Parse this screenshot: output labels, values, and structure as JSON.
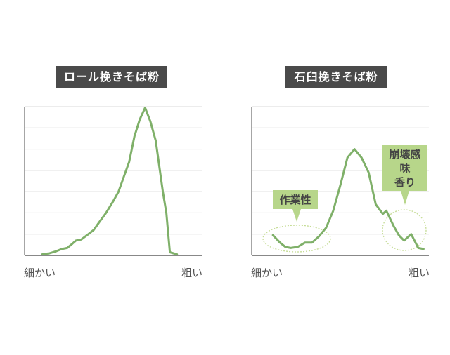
{
  "colors": {
    "line": "#7fb069",
    "grid": "#d8d8d8",
    "axis": "#888888",
    "callout_bg": "#b7d68a",
    "title_bg": "#4a4a4a"
  },
  "chart_data": [
    {
      "type": "line",
      "title": "ロール挽きそば粉",
      "xlabel": "",
      "ylabel": "",
      "x_tick_labels": [
        "細かい",
        "粗い"
      ],
      "grid": true,
      "xlim": [
        0,
        100
      ],
      "ylim": [
        0,
        7
      ],
      "series": [
        {
          "x": [
            10,
            14,
            18,
            21,
            24,
            27,
            29,
            32,
            36,
            39,
            42,
            46,
            50,
            53,
            56,
            59,
            62,
            65,
            68,
            71,
            74,
            78,
            80,
            82,
            86
          ],
          "y": [
            0.05,
            0.1,
            0.2,
            0.3,
            0.35,
            0.55,
            0.7,
            0.75,
            1.0,
            1.2,
            1.55,
            2.0,
            2.55,
            3.0,
            3.7,
            4.4,
            5.6,
            6.4,
            6.95,
            6.3,
            5.4,
            3.0,
            2.0,
            0.15,
            0.05
          ]
        }
      ]
    },
    {
      "type": "line",
      "title": "石臼挽きそば粉",
      "xlabel": "",
      "ylabel": "",
      "x_tick_labels": [
        "細かい",
        "粗い"
      ],
      "grid": true,
      "xlim": [
        0,
        100
      ],
      "ylim": [
        0,
        7
      ],
      "series": [
        {
          "x": [
            12,
            16,
            19,
            22,
            26,
            30,
            34,
            38,
            42,
            46,
            50,
            54,
            58,
            62,
            66,
            70,
            74,
            76,
            80,
            83,
            86,
            90,
            94,
            97
          ],
          "y": [
            0.95,
            0.6,
            0.4,
            0.35,
            0.4,
            0.6,
            0.6,
            0.9,
            1.3,
            2.1,
            3.3,
            4.6,
            5.0,
            4.6,
            3.9,
            2.4,
            1.95,
            2.1,
            1.4,
            0.95,
            0.7,
            1.0,
            0.35,
            0.3
          ]
        }
      ],
      "annotations": [
        {
          "label": "作業性"
        },
        {
          "label": "崩壊感\n味\n香り"
        }
      ]
    }
  ],
  "left": {
    "title": "ロール挽きそば粉",
    "xmin_label": "細かい",
    "xmax_label": "粗い"
  },
  "right": {
    "title": "石臼挽きそば粉",
    "xmin_label": "細かい",
    "xmax_label": "粗い",
    "callout1": "作業性",
    "callout2_lines": [
      "崩壊感",
      "味",
      "香り"
    ]
  }
}
